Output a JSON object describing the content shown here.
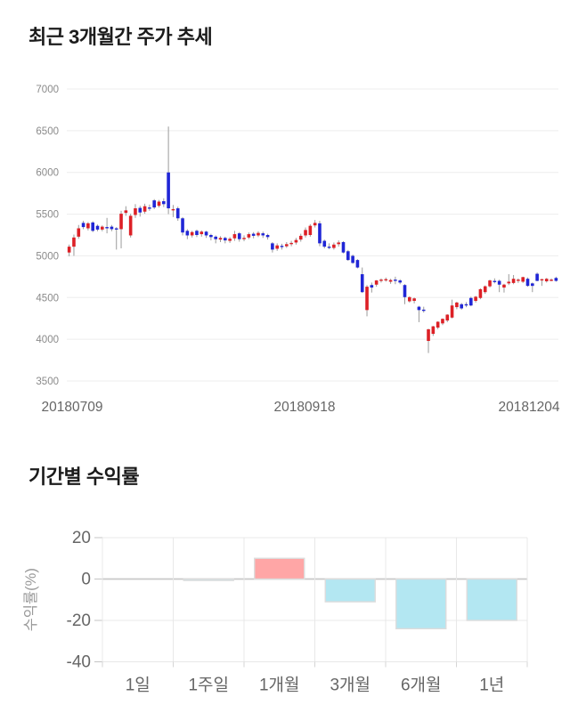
{
  "chart_data": [
    {
      "type": "candlestick",
      "title": "최근 3개월간 주가 추세",
      "ylim": [
        3500,
        7000
      ],
      "y_ticks": [
        7000,
        6500,
        6000,
        5500,
        5000,
        4500,
        4000,
        3500
      ],
      "x_tick_labels": [
        "20180709",
        "20180918",
        "20181204"
      ],
      "grid": "horizontal",
      "legend": false,
      "colors": {
        "up": "#dd2026",
        "down": "#2026d6",
        "wick": "#9b9b9b",
        "grid": "#ededed",
        "y_tick_text": "#8a8a8a",
        "x_tick_text": "#666666"
      },
      "candles_format": [
        "open",
        "high",
        "low",
        "close"
      ],
      "candles": [
        [
          5040,
          5135,
          4995,
          5110
        ],
        [
          5110,
          5255,
          5000,
          5220
        ],
        [
          5230,
          5370,
          5205,
          5330
        ],
        [
          5395,
          5420,
          5320,
          5345
        ],
        [
          5330,
          5405,
          5305,
          5390
        ],
        [
          5400,
          5415,
          5285,
          5300
        ],
        [
          5360,
          5375,
          5295,
          5315
        ],
        [
          5315,
          5365,
          5295,
          5350
        ],
        [
          5345,
          5455,
          5270,
          5335
        ],
        [
          5350,
          5370,
          5295,
          5320
        ],
        [
          5330,
          5345,
          5075,
          5315
        ],
        [
          5320,
          5540,
          5090,
          5505
        ],
        [
          5515,
          5595,
          5480,
          5545
        ],
        [
          5245,
          5505,
          5220,
          5480
        ],
        [
          5490,
          5620,
          5455,
          5570
        ],
        [
          5575,
          5600,
          5470,
          5520
        ],
        [
          5530,
          5625,
          5505,
          5595
        ],
        [
          5580,
          5615,
          5540,
          5575
        ],
        [
          5665,
          5680,
          5560,
          5580
        ],
        [
          5600,
          5670,
          5580,
          5650
        ],
        [
          5655,
          5690,
          5585,
          5620
        ],
        [
          6000,
          6550,
          5500,
          5570
        ],
        [
          5545,
          5610,
          5465,
          5560
        ],
        [
          5570,
          5590,
          5420,
          5450
        ],
        [
          5450,
          5465,
          5245,
          5280
        ],
        [
          5300,
          5320,
          5200,
          5245
        ],
        [
          5245,
          5300,
          5220,
          5285
        ],
        [
          5300,
          5315,
          5225,
          5250
        ],
        [
          5260,
          5305,
          5230,
          5290
        ],
        [
          5290,
          5300,
          5215,
          5245
        ],
        [
          5250,
          5265,
          5185,
          5225
        ],
        [
          5230,
          5245,
          5150,
          5200
        ],
        [
          5195,
          5235,
          5165,
          5215
        ],
        [
          5215,
          5230,
          5150,
          5185
        ],
        [
          5180,
          5225,
          5155,
          5205
        ],
        [
          5210,
          5300,
          5180,
          5260
        ],
        [
          5270,
          5285,
          5170,
          5200
        ],
        [
          5200,
          5245,
          5175,
          5215
        ],
        [
          5220,
          5280,
          5200,
          5260
        ],
        [
          5265,
          5285,
          5210,
          5240
        ],
        [
          5245,
          5295,
          5225,
          5275
        ],
        [
          5270,
          5290,
          5215,
          5245
        ],
        [
          5250,
          5265,
          5195,
          5225
        ],
        [
          5150,
          5165,
          5040,
          5075
        ],
        [
          5085,
          5150,
          5060,
          5125
        ],
        [
          5120,
          5145,
          5075,
          5110
        ],
        [
          5115,
          5165,
          5095,
          5140
        ],
        [
          5140,
          5180,
          5115,
          5155
        ],
        [
          5160,
          5215,
          5135,
          5190
        ],
        [
          5195,
          5265,
          5170,
          5240
        ],
        [
          5245,
          5340,
          5220,
          5310
        ],
        [
          5250,
          5380,
          5230,
          5360
        ],
        [
          5365,
          5430,
          5340,
          5395
        ],
        [
          5390,
          5420,
          5115,
          5150
        ],
        [
          5180,
          5195,
          5090,
          5110
        ],
        [
          5110,
          5150,
          5080,
          5095
        ],
        [
          5095,
          5160,
          5075,
          5135
        ],
        [
          5140,
          5185,
          5110,
          5160
        ],
        [
          5165,
          5175,
          5030,
          5040
        ],
        [
          5055,
          5070,
          4940,
          4950
        ],
        [
          5000,
          5015,
          4905,
          4915
        ],
        [
          4950,
          4960,
          4850,
          4860
        ],
        [
          4780,
          4860,
          4555,
          4565
        ],
        [
          4350,
          4650,
          4275,
          4630
        ],
        [
          4650,
          4680,
          4560,
          4620
        ],
        [
          4655,
          4710,
          4630,
          4705
        ],
        [
          4710,
          4730,
          4680,
          4715
        ],
        [
          4715,
          4740,
          4690,
          4720
        ],
        [
          4690,
          4725,
          4665,
          4710
        ],
        [
          4715,
          4750,
          4660,
          4700
        ],
        [
          4705,
          4720,
          4660,
          4680
        ],
        [
          4650,
          4660,
          4420,
          4505
        ],
        [
          4455,
          4515,
          4440,
          4505
        ],
        [
          4460,
          4500,
          4430,
          4490
        ],
        [
          4390,
          4400,
          4205,
          4350
        ],
        [
          4355,
          4390,
          4320,
          4350
        ],
        [
          3980,
          4125,
          3835,
          4120
        ],
        [
          4065,
          4160,
          4040,
          4155
        ],
        [
          4140,
          4215,
          4120,
          4210
        ],
        [
          4190,
          4250,
          4170,
          4245
        ],
        [
          4225,
          4300,
          4205,
          4295
        ],
        [
          4260,
          4475,
          4250,
          4405
        ],
        [
          4385,
          4450,
          4360,
          4440
        ],
        [
          4420,
          4435,
          4355,
          4370
        ],
        [
          4420,
          4445,
          4385,
          4410
        ],
        [
          4495,
          4510,
          4395,
          4405
        ],
        [
          4460,
          4520,
          4440,
          4510
        ],
        [
          4495,
          4610,
          4480,
          4600
        ],
        [
          4565,
          4645,
          4545,
          4635
        ],
        [
          4635,
          4715,
          4620,
          4705
        ],
        [
          4700,
          4730,
          4670,
          4690
        ],
        [
          4700,
          4715,
          4565,
          4655
        ],
        [
          4620,
          4665,
          4560,
          4655
        ],
        [
          4670,
          4780,
          4650,
          4690
        ],
        [
          4675,
          4770,
          4660,
          4725
        ],
        [
          4700,
          4730,
          4675,
          4715
        ],
        [
          4690,
          4750,
          4675,
          4745
        ],
        [
          4725,
          4740,
          4630,
          4640
        ],
        [
          4670,
          4680,
          4565,
          4640
        ],
        [
          4785,
          4800,
          4695,
          4700
        ],
        [
          4705,
          4725,
          4640,
          4720
        ],
        [
          4695,
          4735,
          4680,
          4725
        ],
        [
          4710,
          4730,
          4695,
          4715
        ],
        [
          4735,
          4750,
          4690,
          4700
        ]
      ]
    },
    {
      "type": "bar",
      "title": "기간별 수익률",
      "ylabel": "수익률(%)",
      "categories": [
        "1일",
        "1주일",
        "1개월",
        "3개월",
        "6개월",
        "1년"
      ],
      "values": [
        0,
        -0.2,
        10,
        -11,
        -24,
        -20
      ],
      "y_ticks": [
        20,
        0,
        -20,
        -40
      ],
      "ylim": [
        -40,
        20
      ],
      "grid": true,
      "legend": false,
      "colors": {
        "positive": "#ffa6a6",
        "negative": "#b3e7f2",
        "bar_border": "#dcdcdc",
        "grid": "#e8e8e8",
        "zero_line": "#c9c9c9",
        "tick_text": "#666666",
        "ylabel_text": "#999999"
      }
    }
  ]
}
